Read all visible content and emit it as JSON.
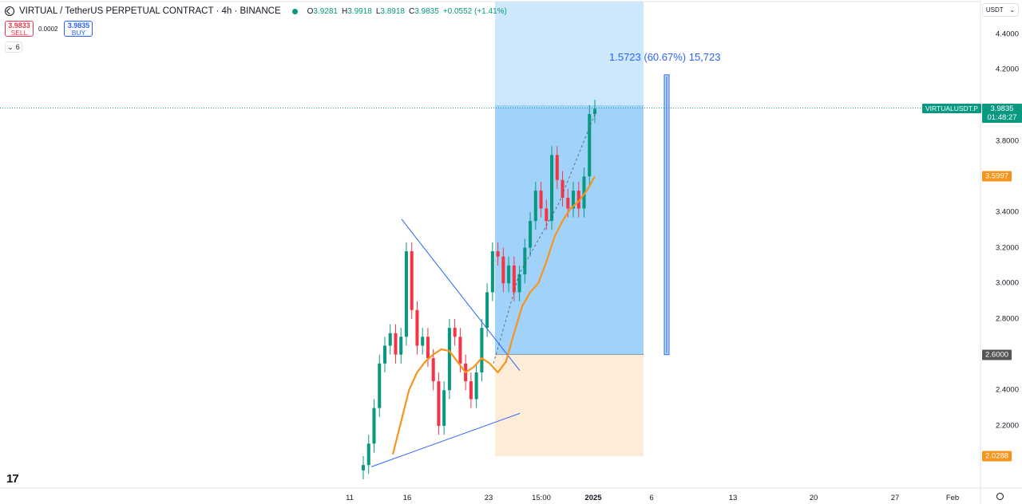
{
  "header": {
    "title": "VIRTUAL / TetherUS PERPETUAL CONTRACT · 4h · BINANCE",
    "ohlc": [
      {
        "k": "O",
        "v": "3.9281"
      },
      {
        "k": "H",
        "v": "3.9918"
      },
      {
        "k": "L",
        "v": "3.8918"
      },
      {
        "k": "C",
        "v": "3.9835"
      },
      {
        "k": "",
        "v": "+0.0552 (+1.41%)"
      }
    ]
  },
  "trade": {
    "sell_price": "3.9833",
    "sell_label": "SELL",
    "spread": "0.0002",
    "buy_price": "3.9835",
    "buy_label": "BUY"
  },
  "indicator_toggle": "6",
  "currency": "USDT",
  "labels": {
    "symbol": "VIRTUALUSDT.P",
    "price": "3.9835",
    "countdown": "01:48:27",
    "ma": "3.5997",
    "entry": "2.6000",
    "stop": "2.0288",
    "measure": "1.5723 (60.67%) 15,723"
  },
  "colors": {
    "up": "#089981",
    "down": "#f23645",
    "ma": "#f7941d",
    "trend": "#2962ff",
    "target_zone": "#90caf9",
    "stop_zone": "#fdecd8"
  },
  "chart_data": {
    "type": "candlestick",
    "symbol": "VIRTUALUSDT.P",
    "timeframe": "4h",
    "y_ticks": [
      4.4,
      4.2,
      3.8,
      3.4,
      3.2,
      3.0,
      2.8,
      2.4,
      2.2
    ],
    "y_tick_labels": [
      "4.4000",
      "4.2000",
      "3.8000",
      "3.4000",
      "3.2000",
      "3.0000",
      "2.8000",
      "2.4000",
      "2.2000"
    ],
    "x_ticks": [
      "11",
      "16",
      "23",
      "15:00",
      "2025",
      "6",
      "13",
      "20",
      "27",
      "Feb"
    ],
    "ylim": [
      1.95,
      4.55
    ],
    "last_price": 3.9835,
    "position": {
      "entry": 2.6,
      "target": 4.0,
      "stop": 2.0288
    },
    "measure": {
      "from": 2.6,
      "to": 4.17,
      "text": "1.5723 (60.67%) 15,723"
    },
    "ma_values": [
      2.04,
      2.22,
      2.4,
      2.5,
      2.56,
      2.6,
      2.63,
      2.62,
      2.56,
      2.5,
      2.53,
      2.58,
      2.55,
      2.5,
      2.56,
      2.72,
      2.87,
      2.95,
      3.0,
      3.12,
      3.26,
      3.35,
      3.42,
      3.46,
      3.52,
      3.6
    ],
    "trendlines": [
      {
        "from": [
          "11",
          1.97
        ],
        "to": [
          "23+",
          2.27
        ]
      },
      {
        "from": [
          "16-",
          3.36
        ],
        "to": [
          "23+",
          2.51
        ]
      }
    ],
    "candles_close": [
      1.98,
      2.1,
      2.3,
      2.55,
      2.65,
      2.72,
      2.6,
      2.7,
      3.18,
      2.85,
      2.65,
      2.7,
      2.58,
      2.45,
      2.2,
      2.4,
      2.75,
      2.7,
      2.55,
      2.45,
      2.35,
      2.5,
      2.75,
      2.95,
      3.18,
      3.15,
      3.0,
      3.1,
      2.95,
      3.05,
      3.2,
      3.35,
      3.52,
      3.42,
      3.35,
      3.72,
      3.58,
      3.48,
      3.42,
      3.52,
      3.42,
      3.6,
      3.95,
      3.98
    ]
  }
}
